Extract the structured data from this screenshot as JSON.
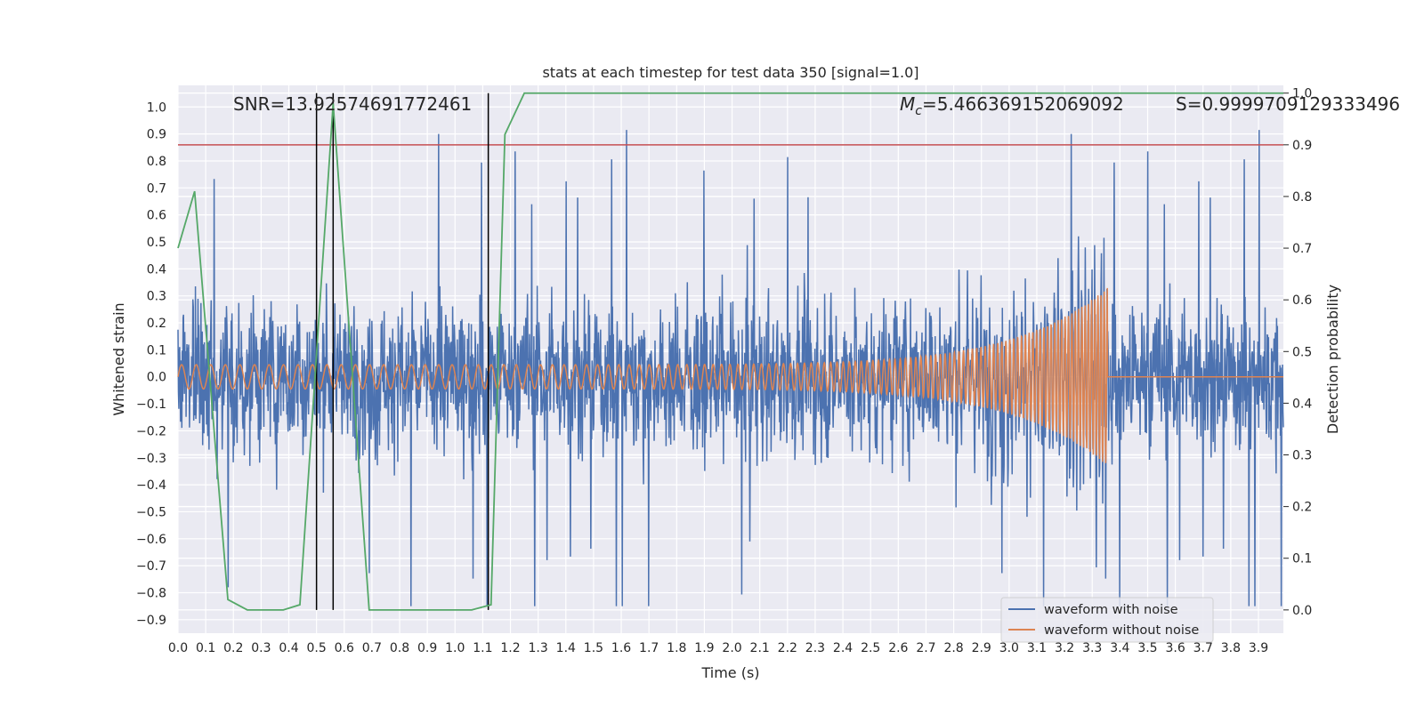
{
  "chart_data": {
    "type": "line",
    "title": "stats at each timestep for test data 350 [signal=1.0]",
    "xlabel": "Time (s)",
    "ylabel": "Whitened strain",
    "y2label": "Detection probability",
    "xlim": [
      0.0,
      3.99
    ],
    "ylim": [
      -0.95,
      1.08
    ],
    "y2lim": [
      -0.045,
      1.015
    ],
    "xticks": [
      "0.0",
      "0.1",
      "0.2",
      "0.3",
      "0.4",
      "0.5",
      "0.6",
      "0.7",
      "0.8",
      "0.9",
      "1.0",
      "1.1",
      "1.2",
      "1.3",
      "1.4",
      "1.5",
      "1.6",
      "1.7",
      "1.8",
      "1.9",
      "2.0",
      "2.1",
      "2.2",
      "2.3",
      "2.4",
      "2.5",
      "2.6",
      "2.7",
      "2.8",
      "2.9",
      "3.0",
      "3.1",
      "3.2",
      "3.3",
      "3.4",
      "3.5",
      "3.6",
      "3.7",
      "3.8",
      "3.9"
    ],
    "yticks": [
      "1.0",
      "0.9",
      "0.8",
      "0.7",
      "0.6",
      "0.5",
      "0.4",
      "0.3",
      "0.2",
      "0.1",
      "0.0",
      "−0.1",
      "−0.2",
      "−0.3",
      "−0.4",
      "−0.5",
      "−0.6",
      "−0.7",
      "−0.8",
      "−0.9"
    ],
    "y2ticks": [
      "1.0",
      "0.9",
      "0.8",
      "0.7",
      "0.6",
      "0.5",
      "0.4",
      "0.3",
      "0.2",
      "0.1",
      "0.0"
    ],
    "annotations": {
      "snr": "SNR=13.92574691772461",
      "mc_symbol": "M",
      "mc_sub": "c",
      "mc_value": "=5.466369152069092",
      "s": "S=0.9999709129333496"
    },
    "series": [
      {
        "name": "waveform with noise",
        "color": "#4c72b0",
        "noise_envelope": 0.35,
        "peaks_max": 0.95,
        "peaks_min": -0.85
      },
      {
        "name": "waveform without noise",
        "color": "#dd8452",
        "base_amplitude": 0.045,
        "peak_amplitude": 0.33,
        "merger_time": 3.355,
        "start_frequency": 19,
        "end_frequency": 90
      }
    ],
    "detection_probability": {
      "color": "#55a868",
      "x": [
        0.0,
        0.06,
        0.18,
        0.25,
        0.38,
        0.44,
        0.56,
        0.69,
        1.06,
        1.13,
        1.18,
        1.25,
        3.99
      ],
      "y": [
        0.7,
        0.81,
        0.02,
        0.0,
        0.0,
        0.01,
        0.98,
        0.0,
        0.0,
        0.01,
        0.92,
        1.0,
        1.0
      ]
    },
    "threshold": {
      "value": 0.9,
      "color": "#c44e52"
    },
    "vlines": [
      0.5,
      0.56,
      1.12
    ],
    "legend": {
      "placement": "lower-right"
    }
  }
}
